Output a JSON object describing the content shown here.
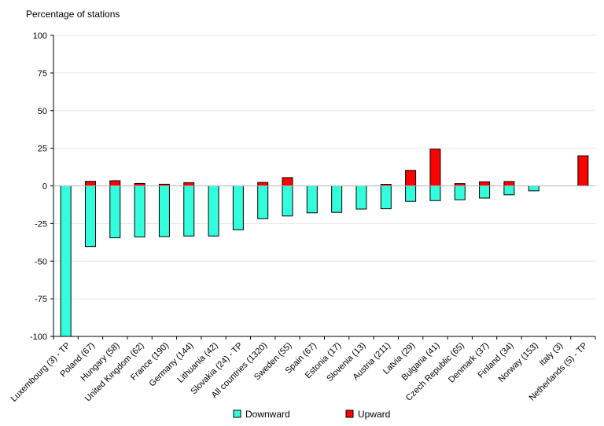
{
  "chart_data": {
    "type": "bar",
    "stacked": true,
    "ylabel": "Percentage of stations",
    "xlabel": "",
    "ylim": [
      -100,
      100
    ],
    "yticks": [
      100,
      75,
      50,
      25,
      0,
      -25,
      -50,
      -75,
      -100
    ],
    "grid": true,
    "legend_position": "bottom",
    "categories": [
      "Luxembourg (3) - TP",
      "Poland (67)",
      "Hungary (58)",
      "United Kingdom (62)",
      "France (190)",
      "Germany (144)",
      "Lithuania (42)",
      "Slovakia (24) - TP",
      "All countries (1320)",
      "Sweden (55)",
      "Spain (67)",
      "Estonia (17)",
      "Slovenia (13)",
      "Austria (211)",
      "Latvia (29)",
      "Bulgaria (41)",
      "Czech Republic (65)",
      "Denmark (37)",
      "Finland (34)",
      "Norway (153)",
      "Italy (3)",
      "Netherlands (5) - TP"
    ],
    "series": [
      {
        "name": "Downward",
        "color": "#33ffdd",
        "values": [
          -100,
          -40.3,
          -34.5,
          -33.9,
          -33.7,
          -33.3,
          -33.3,
          -29.2,
          -21.8,
          -20,
          -17.9,
          -17.6,
          -15.4,
          -15.2,
          -10.3,
          -9.8,
          -9.2,
          -8.1,
          -5.9,
          -3.3,
          0,
          0
        ]
      },
      {
        "name": "Upward",
        "color": "#ff0000",
        "values": [
          0,
          3,
          3.4,
          1.6,
          1.1,
          2.1,
          0,
          0,
          2.3,
          5.5,
          0,
          0,
          0,
          1,
          10.3,
          24.4,
          1.5,
          2.7,
          2.9,
          0,
          0,
          20
        ]
      }
    ]
  }
}
